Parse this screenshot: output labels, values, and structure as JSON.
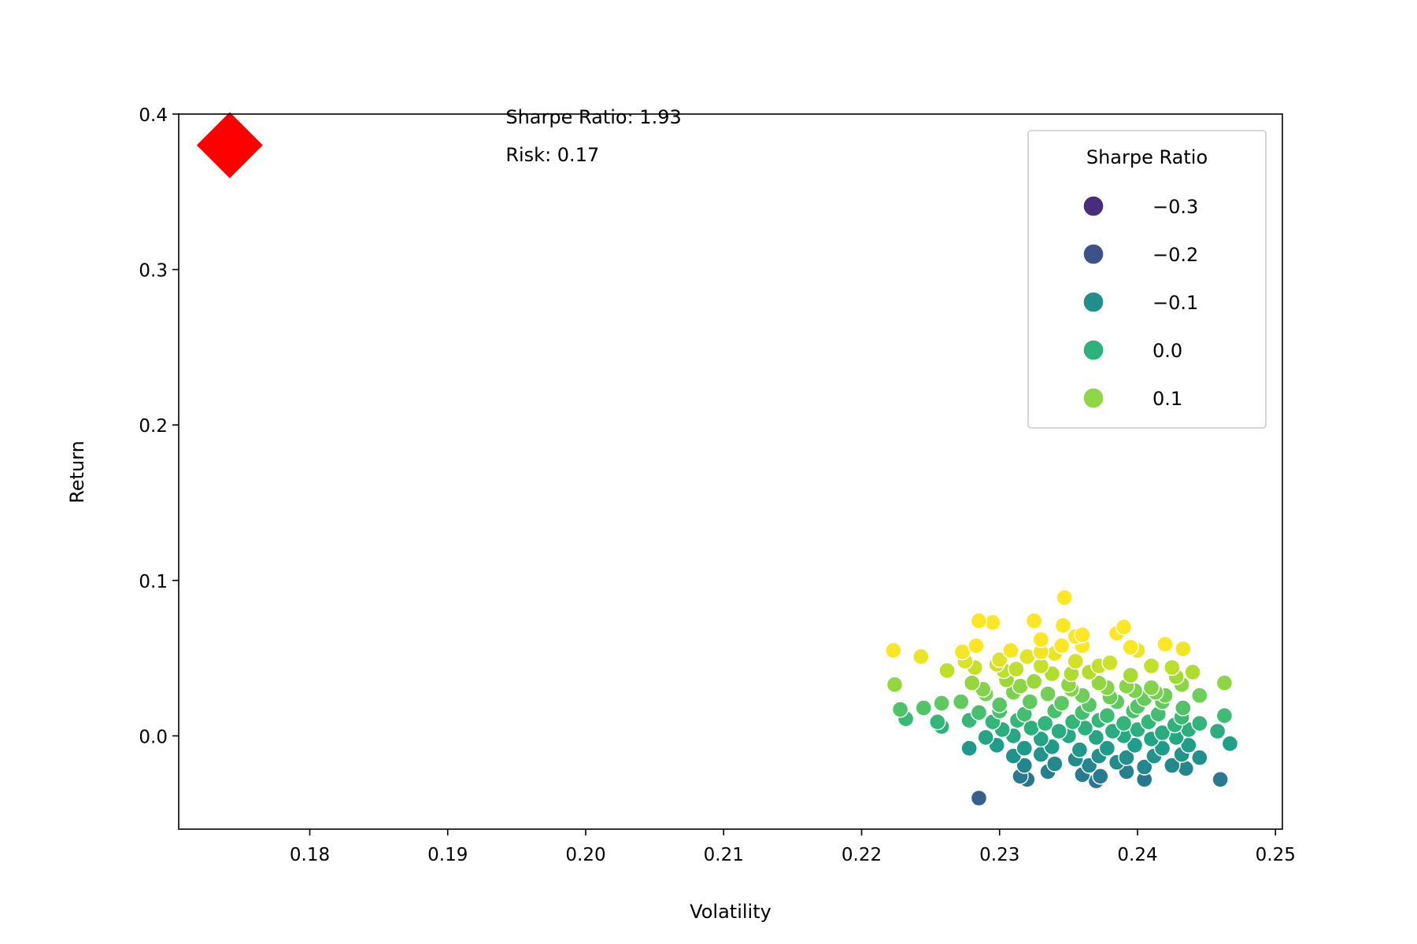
{
  "chart_data": {
    "type": "scatter",
    "title": "",
    "xlabel": "Volatility",
    "ylabel": "Return",
    "xlim": [
      0.1705,
      0.2505
    ],
    "ylim": [
      -0.06,
      0.4
    ],
    "x_ticks": [
      "0.18",
      "0.19",
      "0.20",
      "0.21",
      "0.22",
      "0.23",
      "0.24",
      "0.25"
    ],
    "x_tick_values": [
      0.18,
      0.19,
      0.2,
      0.21,
      0.22,
      0.23,
      0.24,
      0.25
    ],
    "y_ticks": [
      "0.0",
      "0.1",
      "0.2",
      "0.3",
      "0.4"
    ],
    "y_tick_values": [
      0.0,
      0.1,
      0.2,
      0.3,
      0.4
    ],
    "grid": false,
    "annotations": [
      "Sharpe Ratio: 1.93",
      "Risk: 0.17"
    ],
    "annotation_anchor": {
      "x": 0.1942,
      "y": 0.394
    },
    "optimal_portfolio": {
      "volatility": 0.1742,
      "return": 0.38,
      "marker": "diamond",
      "color": "#ff0000"
    },
    "legend": {
      "title": "Sharpe Ratio",
      "placement": "top-right",
      "entries": [
        {
          "label": "−0.3",
          "color": "#472d7b"
        },
        {
          "label": "−0.2",
          "color": "#3b528b"
        },
        {
          "label": "−0.1",
          "color": "#21908d"
        },
        {
          "label": "0.0",
          "color": "#2db27d"
        },
        {
          "label": "0.1",
          "color": "#8fd744"
        }
      ]
    },
    "colorscale": {
      "sharpe_min": -0.4,
      "sharpe_max": 0.2,
      "stops": [
        "#440154",
        "#482878",
        "#3e4989",
        "#31688e",
        "#26828e",
        "#1f9e89",
        "#35b779",
        "#6ece58",
        "#b5de2b",
        "#fde725"
      ]
    },
    "points": [
      [
        0.2285,
        -0.04
      ],
      [
        0.2347,
        0.089
      ],
      [
        0.2285,
        0.074
      ],
      [
        0.2295,
        0.073
      ],
      [
        0.2325,
        0.074
      ],
      [
        0.2346,
        0.071
      ],
      [
        0.239,
        0.07
      ],
      [
        0.2385,
        0.066
      ],
      [
        0.236,
        0.065
      ],
      [
        0.2355,
        0.064
      ],
      [
        0.233,
        0.062
      ],
      [
        0.242,
        0.059
      ],
      [
        0.2433,
        0.056
      ],
      [
        0.2395,
        0.057
      ],
      [
        0.24,
        0.055
      ],
      [
        0.2283,
        0.058
      ],
      [
        0.2223,
        0.055
      ],
      [
        0.2243,
        0.051
      ],
      [
        0.2273,
        0.054
      ],
      [
        0.2308,
        0.055
      ],
      [
        0.234,
        0.053
      ],
      [
        0.232,
        0.051
      ],
      [
        0.23,
        0.049
      ],
      [
        0.2275,
        0.048
      ],
      [
        0.2355,
        0.048
      ],
      [
        0.238,
        0.047
      ],
      [
        0.241,
        0.045
      ],
      [
        0.2425,
        0.044
      ],
      [
        0.2298,
        0.046
      ],
      [
        0.2262,
        0.042
      ],
      [
        0.2312,
        0.043
      ],
      [
        0.2338,
        0.04
      ],
      [
        0.2365,
        0.041
      ],
      [
        0.2395,
        0.039
      ],
      [
        0.2428,
        0.038
      ],
      [
        0.244,
        0.041
      ],
      [
        0.2463,
        0.034
      ],
      [
        0.2224,
        0.033
      ],
      [
        0.228,
        0.034
      ],
      [
        0.2305,
        0.036
      ],
      [
        0.2325,
        0.035
      ],
      [
        0.235,
        0.033
      ],
      [
        0.2372,
        0.034
      ],
      [
        0.2392,
        0.032
      ],
      [
        0.241,
        0.031
      ],
      [
        0.2432,
        0.033
      ],
      [
        0.2445,
        0.026
      ],
      [
        0.229,
        0.027
      ],
      [
        0.231,
        0.028
      ],
      [
        0.2335,
        0.027
      ],
      [
        0.236,
        0.026
      ],
      [
        0.238,
        0.025
      ],
      [
        0.2405,
        0.024
      ],
      [
        0.242,
        0.026
      ],
      [
        0.2258,
        0.021
      ],
      [
        0.2272,
        0.022
      ],
      [
        0.23,
        0.02
      ],
      [
        0.2322,
        0.022
      ],
      [
        0.2345,
        0.021
      ],
      [
        0.2365,
        0.02
      ],
      [
        0.2385,
        0.022
      ],
      [
        0.24,
        0.019
      ],
      [
        0.2418,
        0.022
      ],
      [
        0.2433,
        0.018
      ],
      [
        0.2228,
        0.017
      ],
      [
        0.2245,
        0.018
      ],
      [
        0.2285,
        0.015
      ],
      [
        0.23,
        0.016
      ],
      [
        0.2318,
        0.014
      ],
      [
        0.234,
        0.016
      ],
      [
        0.236,
        0.015
      ],
      [
        0.2378,
        0.013
      ],
      [
        0.2397,
        0.016
      ],
      [
        0.2415,
        0.014
      ],
      [
        0.2432,
        0.012
      ],
      [
        0.2463,
        0.013
      ],
      [
        0.2232,
        0.011
      ],
      [
        0.2255,
        0.009
      ],
      [
        0.2278,
        0.01
      ],
      [
        0.2295,
        0.009
      ],
      [
        0.2313,
        0.01
      ],
      [
        0.2333,
        0.008
      ],
      [
        0.2353,
        0.009
      ],
      [
        0.2372,
        0.01
      ],
      [
        0.239,
        0.008
      ],
      [
        0.2408,
        0.009
      ],
      [
        0.2427,
        0.007
      ],
      [
        0.2445,
        0.008
      ],
      [
        0.2258,
        0.006
      ],
      [
        0.2302,
        0.004
      ],
      [
        0.2323,
        0.005
      ],
      [
        0.2343,
        0.003
      ],
      [
        0.2362,
        0.005
      ],
      [
        0.2382,
        0.003
      ],
      [
        0.24,
        0.004
      ],
      [
        0.2418,
        0.002
      ],
      [
        0.2437,
        0.004
      ],
      [
        0.2458,
        0.003
      ],
      [
        0.229,
        -0.001
      ],
      [
        0.231,
        0.0
      ],
      [
        0.233,
        -0.002
      ],
      [
        0.235,
        0.0
      ],
      [
        0.237,
        -0.001
      ],
      [
        0.239,
        0.0
      ],
      [
        0.241,
        -0.002
      ],
      [
        0.2428,
        -0.001
      ],
      [
        0.2278,
        -0.008
      ],
      [
        0.2298,
        -0.006
      ],
      [
        0.2318,
        -0.008
      ],
      [
        0.2338,
        -0.007
      ],
      [
        0.2358,
        -0.009
      ],
      [
        0.2378,
        -0.008
      ],
      [
        0.2398,
        -0.006
      ],
      [
        0.2418,
        -0.008
      ],
      [
        0.2437,
        -0.006
      ],
      [
        0.2467,
        -0.005
      ],
      [
        0.231,
        -0.013
      ],
      [
        0.233,
        -0.012
      ],
      [
        0.2355,
        -0.015
      ],
      [
        0.2372,
        -0.013
      ],
      [
        0.2392,
        -0.014
      ],
      [
        0.2412,
        -0.013
      ],
      [
        0.2432,
        -0.012
      ],
      [
        0.2445,
        -0.014
      ],
      [
        0.2318,
        -0.019
      ],
      [
        0.234,
        -0.018
      ],
      [
        0.2365,
        -0.019
      ],
      [
        0.2385,
        -0.017
      ],
      [
        0.2405,
        -0.02
      ],
      [
        0.2425,
        -0.019
      ],
      [
        0.2435,
        -0.021
      ],
      [
        0.2315,
        -0.026
      ],
      [
        0.2335,
        -0.023
      ],
      [
        0.236,
        -0.025
      ],
      [
        0.237,
        -0.029
      ],
      [
        0.2373,
        -0.026
      ],
      [
        0.2392,
        -0.023
      ],
      [
        0.2405,
        -0.028
      ],
      [
        0.246,
        -0.028
      ],
      [
        0.232,
        -0.028
      ],
      [
        0.2288,
        0.03
      ],
      [
        0.2315,
        0.032
      ],
      [
        0.2352,
        0.03
      ],
      [
        0.2378,
        0.031
      ],
      [
        0.2398,
        0.029
      ],
      [
        0.2413,
        0.028
      ],
      [
        0.2303,
        0.042
      ],
      [
        0.233,
        0.045
      ],
      [
        0.2372,
        0.045
      ],
      [
        0.2352,
        0.04
      ],
      [
        0.2282,
        0.044
      ],
      [
        0.236,
        0.058
      ],
      [
        0.2345,
        0.058
      ],
      [
        0.233,
        0.054
      ]
    ]
  }
}
